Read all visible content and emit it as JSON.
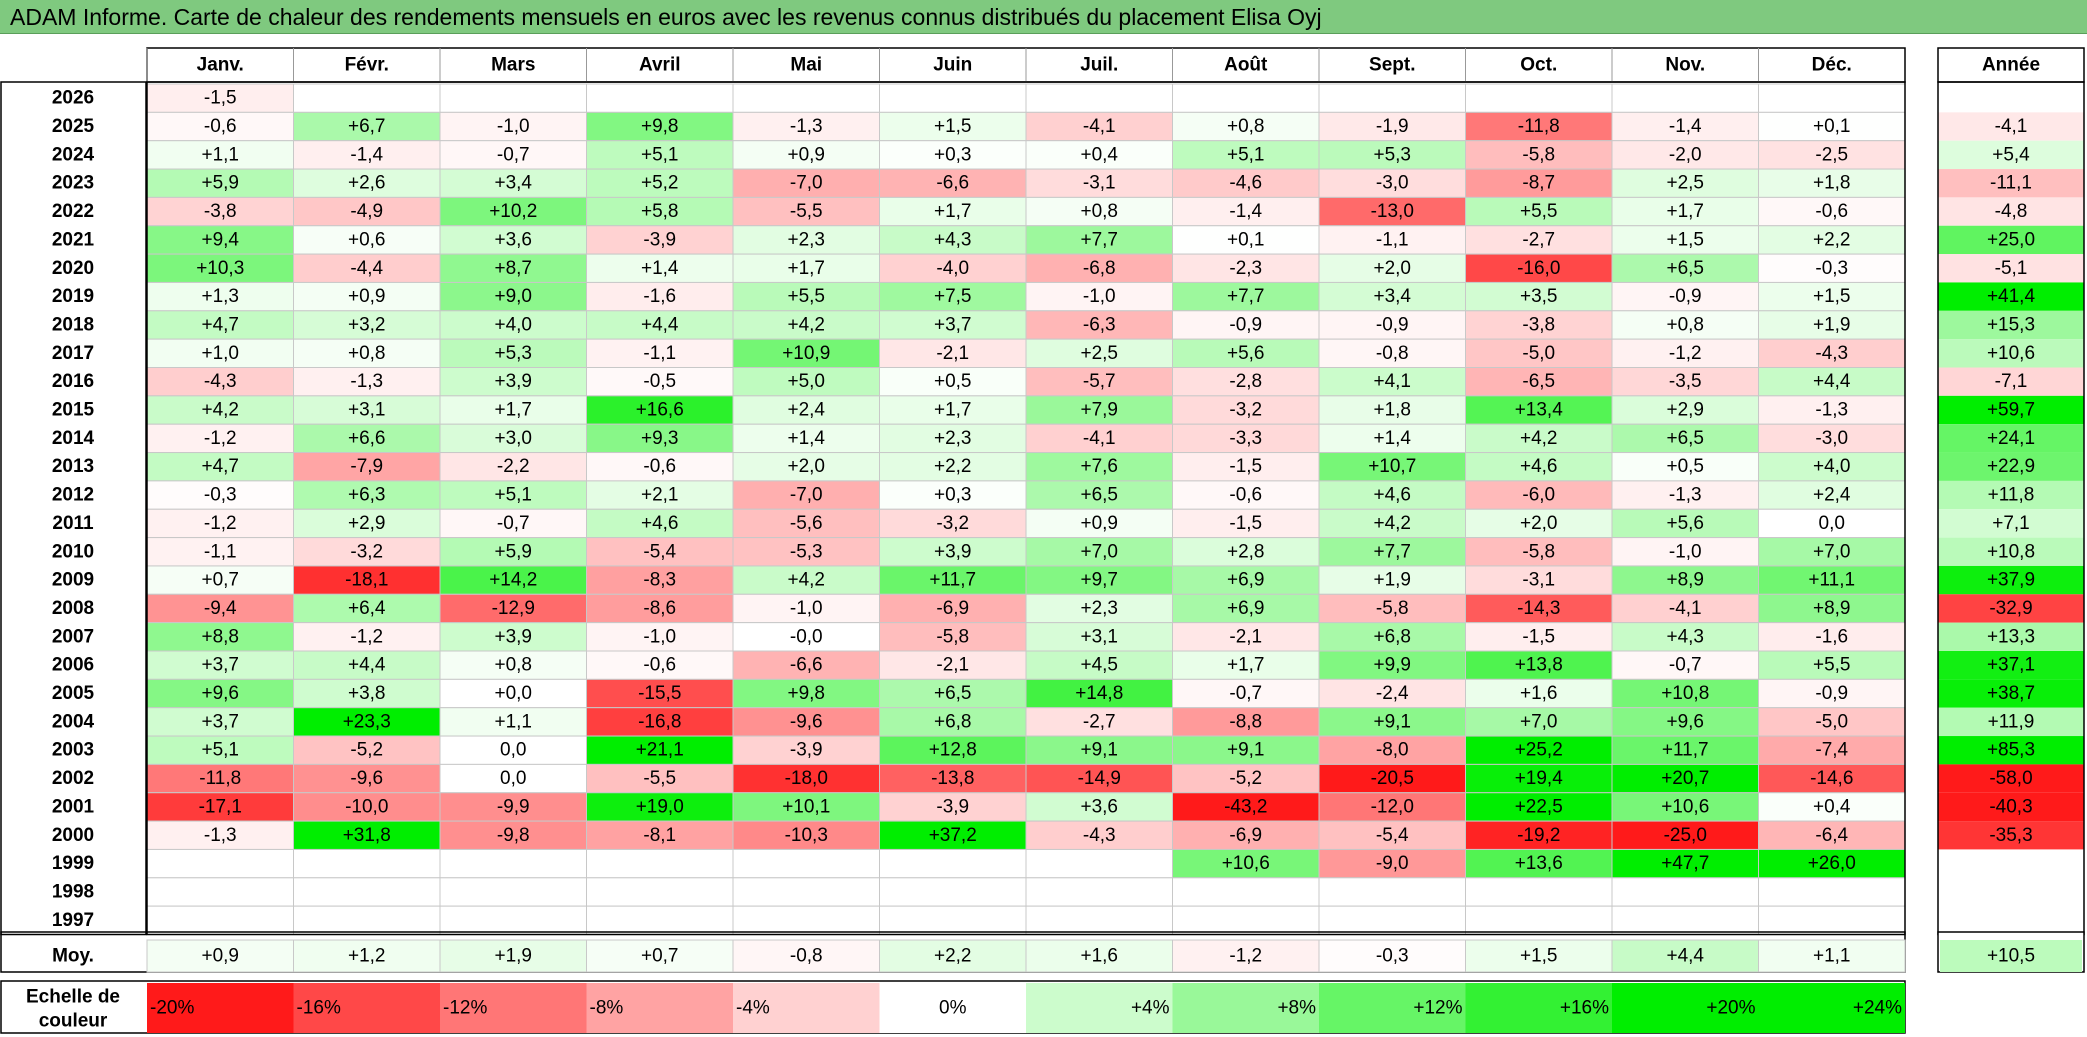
{
  "title": "ADAM Informe. Carte de chaleur des rendements mensuels en euros avec les revenus connus distribués du placement Elisa Oyj",
  "chart_data": {
    "type": "heatmap",
    "title": "ADAM Informe. Carte de chaleur des rendements mensuels en euros avec les revenus connus distribués du placement Elisa Oyj",
    "months": [
      "Janv.",
      "Févr.",
      "Mars",
      "Avril",
      "Mai",
      "Juin",
      "Juil.",
      "Août",
      "Sept.",
      "Oct.",
      "Nov.",
      "Déc."
    ],
    "year_header": "Année",
    "rows": [
      {
        "year": "2026",
        "values": [
          "-1,5",
          "",
          "",
          "",
          "",
          "",
          "",
          "",
          "",
          "",
          "",
          ""
        ],
        "annual": ""
      },
      {
        "year": "2025",
        "values": [
          "-0,6",
          "+6,7",
          "-1,0",
          "+9,8",
          "-1,3",
          "+1,5",
          "-4,1",
          "+0,8",
          "-1,9",
          "-11,8",
          "-1,4",
          "+0,1"
        ],
        "annual": "-4,1"
      },
      {
        "year": "2024",
        "values": [
          "+1,1",
          "-1,4",
          "-0,7",
          "+5,1",
          "+0,9",
          "+0,3",
          "+0,4",
          "+5,1",
          "+5,3",
          "-5,8",
          "-2,0",
          "-2,5"
        ],
        "annual": "+5,4"
      },
      {
        "year": "2023",
        "values": [
          "+5,9",
          "+2,6",
          "+3,4",
          "+5,2",
          "-7,0",
          "-6,6",
          "-3,1",
          "-4,6",
          "-3,0",
          "-8,7",
          "+2,5",
          "+1,8"
        ],
        "annual": "-11,1"
      },
      {
        "year": "2022",
        "values": [
          "-3,8",
          "-4,9",
          "+10,2",
          "+5,8",
          "-5,5",
          "+1,7",
          "+0,8",
          "-1,4",
          "-13,0",
          "+5,5",
          "+1,7",
          "-0,6"
        ],
        "annual": "-4,8"
      },
      {
        "year": "2021",
        "values": [
          "+9,4",
          "+0,6",
          "+3,6",
          "-3,9",
          "+2,3",
          "+4,3",
          "+7,7",
          "+0,1",
          "-1,1",
          "-2,7",
          "+1,5",
          "+2,2"
        ],
        "annual": "+25,0"
      },
      {
        "year": "2020",
        "values": [
          "+10,3",
          "-4,4",
          "+8,7",
          "+1,4",
          "+1,7",
          "-4,0",
          "-6,8",
          "-2,3",
          "+2,0",
          "-16,0",
          "+6,5",
          "-0,3"
        ],
        "annual": "-5,1"
      },
      {
        "year": "2019",
        "values": [
          "+1,3",
          "+0,9",
          "+9,0",
          "-1,6",
          "+5,5",
          "+7,5",
          "-1,0",
          "+7,7",
          "+3,4",
          "+3,5",
          "-0,9",
          "+1,5"
        ],
        "annual": "+41,4"
      },
      {
        "year": "2018",
        "values": [
          "+4,7",
          "+3,2",
          "+4,0",
          "+4,4",
          "+4,2",
          "+3,7",
          "-6,3",
          "-0,9",
          "-0,9",
          "-3,8",
          "+0,8",
          "+1,9"
        ],
        "annual": "+15,3"
      },
      {
        "year": "2017",
        "values": [
          "+1,0",
          "+0,8",
          "+5,3",
          "-1,1",
          "+10,9",
          "-2,1",
          "+2,5",
          "+5,6",
          "-0,8",
          "-5,0",
          "-1,2",
          "-4,3"
        ],
        "annual": "+10,6"
      },
      {
        "year": "2016",
        "values": [
          "-4,3",
          "-1,3",
          "+3,9",
          "-0,5",
          "+5,0",
          "+0,5",
          "-5,7",
          "-2,8",
          "+4,1",
          "-6,5",
          "-3,5",
          "+4,4"
        ],
        "annual": "-7,1"
      },
      {
        "year": "2015",
        "values": [
          "+4,2",
          "+3,1",
          "+1,7",
          "+16,6",
          "+2,4",
          "+1,7",
          "+7,9",
          "-3,2",
          "+1,8",
          "+13,4",
          "+2,9",
          "-1,3"
        ],
        "annual": "+59,7"
      },
      {
        "year": "2014",
        "values": [
          "-1,2",
          "+6,6",
          "+3,0",
          "+9,3",
          "+1,4",
          "+2,3",
          "-4,1",
          "-3,3",
          "+1,4",
          "+4,2",
          "+6,5",
          "-3,0"
        ],
        "annual": "+24,1"
      },
      {
        "year": "2013",
        "values": [
          "+4,7",
          "-7,9",
          "-2,2",
          "-0,6",
          "+2,0",
          "+2,2",
          "+7,6",
          "-1,5",
          "+10,7",
          "+4,6",
          "+0,5",
          "+4,0"
        ],
        "annual": "+22,9"
      },
      {
        "year": "2012",
        "values": [
          "-0,3",
          "+6,3",
          "+5,1",
          "+2,1",
          "-7,0",
          "+0,3",
          "+6,5",
          "-0,6",
          "+4,6",
          "-6,0",
          "-1,3",
          "+2,4"
        ],
        "annual": "+11,8"
      },
      {
        "year": "2011",
        "values": [
          "-1,2",
          "+2,9",
          "-0,7",
          "+4,6",
          "-5,6",
          "-3,2",
          "+0,9",
          "-1,5",
          "+4,2",
          "+2,0",
          "+5,6",
          "0,0"
        ],
        "annual": "+7,1"
      },
      {
        "year": "2010",
        "values": [
          "-1,1",
          "-3,2",
          "+5,9",
          "-5,4",
          "-5,3",
          "+3,9",
          "+7,0",
          "+2,8",
          "+7,7",
          "-5,8",
          "-1,0",
          "+7,0"
        ],
        "annual": "+10,8"
      },
      {
        "year": "2009",
        "values": [
          "+0,7",
          "-18,1",
          "+14,2",
          "-8,3",
          "+4,2",
          "+11,7",
          "+9,7",
          "+6,9",
          "+1,9",
          "-3,1",
          "+8,9",
          "+11,1"
        ],
        "annual": "+37,9"
      },
      {
        "year": "2008",
        "values": [
          "-9,4",
          "+6,4",
          "-12,9",
          "-8,6",
          "-1,0",
          "-6,9",
          "+2,3",
          "+6,9",
          "-5,8",
          "-14,3",
          "-4,1",
          "+8,9"
        ],
        "annual": "-32,9"
      },
      {
        "year": "2007",
        "values": [
          "+8,8",
          "-1,2",
          "+3,9",
          "-1,0",
          "-0,0",
          "-5,8",
          "+3,1",
          "-2,1",
          "+6,8",
          "-1,5",
          "+4,3",
          "-1,6"
        ],
        "annual": "+13,3"
      },
      {
        "year": "2006",
        "values": [
          "+3,7",
          "+4,4",
          "+0,8",
          "-0,6",
          "-6,6",
          "-2,1",
          "+4,5",
          "+1,7",
          "+9,9",
          "+13,8",
          "-0,7",
          "+5,5"
        ],
        "annual": "+37,1"
      },
      {
        "year": "2005",
        "values": [
          "+9,6",
          "+3,8",
          "+0,0",
          "-15,5",
          "+9,8",
          "+6,5",
          "+14,8",
          "-0,7",
          "-2,4",
          "+1,6",
          "+10,8",
          "-0,9"
        ],
        "annual": "+38,7"
      },
      {
        "year": "2004",
        "values": [
          "+3,7",
          "+23,3",
          "+1,1",
          "-16,8",
          "-9,6",
          "+6,8",
          "-2,7",
          "-8,8",
          "+9,1",
          "+7,0",
          "+9,6",
          "-5,0"
        ],
        "annual": "+11,9"
      },
      {
        "year": "2003",
        "values": [
          "+5,1",
          "-5,2",
          "0,0",
          "+21,1",
          "-3,9",
          "+12,8",
          "+9,1",
          "+9,1",
          "-8,0",
          "+25,2",
          "+11,7",
          "-7,4"
        ],
        "annual": "+85,3"
      },
      {
        "year": "2002",
        "values": [
          "-11,8",
          "-9,6",
          "0,0",
          "-5,5",
          "-18,0",
          "-13,8",
          "-14,9",
          "-5,2",
          "-20,5",
          "+19,4",
          "+20,7",
          "-14,6"
        ],
        "annual": "-58,0"
      },
      {
        "year": "2001",
        "values": [
          "-17,1",
          "-10,0",
          "-9,9",
          "+19,0",
          "+10,1",
          "-3,9",
          "+3,6",
          "-43,2",
          "-12,0",
          "+22,5",
          "+10,6",
          "+0,4"
        ],
        "annual": "-40,3"
      },
      {
        "year": "2000",
        "values": [
          "-1,3",
          "+31,8",
          "-9,8",
          "-8,1",
          "-10,3",
          "+37,2",
          "-4,3",
          "-6,9",
          "-5,4",
          "-19,2",
          "-25,0",
          "-6,4"
        ],
        "annual": "-35,3"
      },
      {
        "year": "1999",
        "values": [
          "",
          "",
          "",
          "",
          "",
          "",
          "",
          "+10,6",
          "-9,0",
          "+13,6",
          "+47,7",
          "+26,0"
        ],
        "annual": ""
      },
      {
        "year": "1998",
        "values": [
          "",
          "",
          "",
          "",
          "",
          "",
          "",
          "",
          "",
          "",
          "",
          ""
        ],
        "annual": ""
      },
      {
        "year": "1997",
        "values": [
          "",
          "",
          "",
          "",
          "",
          "",
          "",
          "",
          "",
          "",
          "",
          ""
        ],
        "annual": ""
      }
    ],
    "average": {
      "label": "Moy.",
      "values": [
        "+0,9",
        "+1,2",
        "+1,9",
        "+0,7",
        "-0,8",
        "+2,2",
        "+1,6",
        "-1,2",
        "-0,3",
        "+1,5",
        "+4,4",
        "+1,1"
      ],
      "annual": "+10,5"
    },
    "scale": {
      "label_lines": [
        "Echelle de",
        "couleur"
      ],
      "steps": [
        "-20%",
        "-16%",
        "-12%",
        "-8%",
        "-4%",
        "0%",
        "+4%",
        "+8%",
        "+12%",
        "+16%",
        "+20%",
        "+24%"
      ]
    },
    "colors": {
      "title_bar": "#7fc97f",
      "negative_max": "#ff1a1a",
      "positive_max": "#00ee00",
      "neutral": "#ffffff"
    }
  }
}
